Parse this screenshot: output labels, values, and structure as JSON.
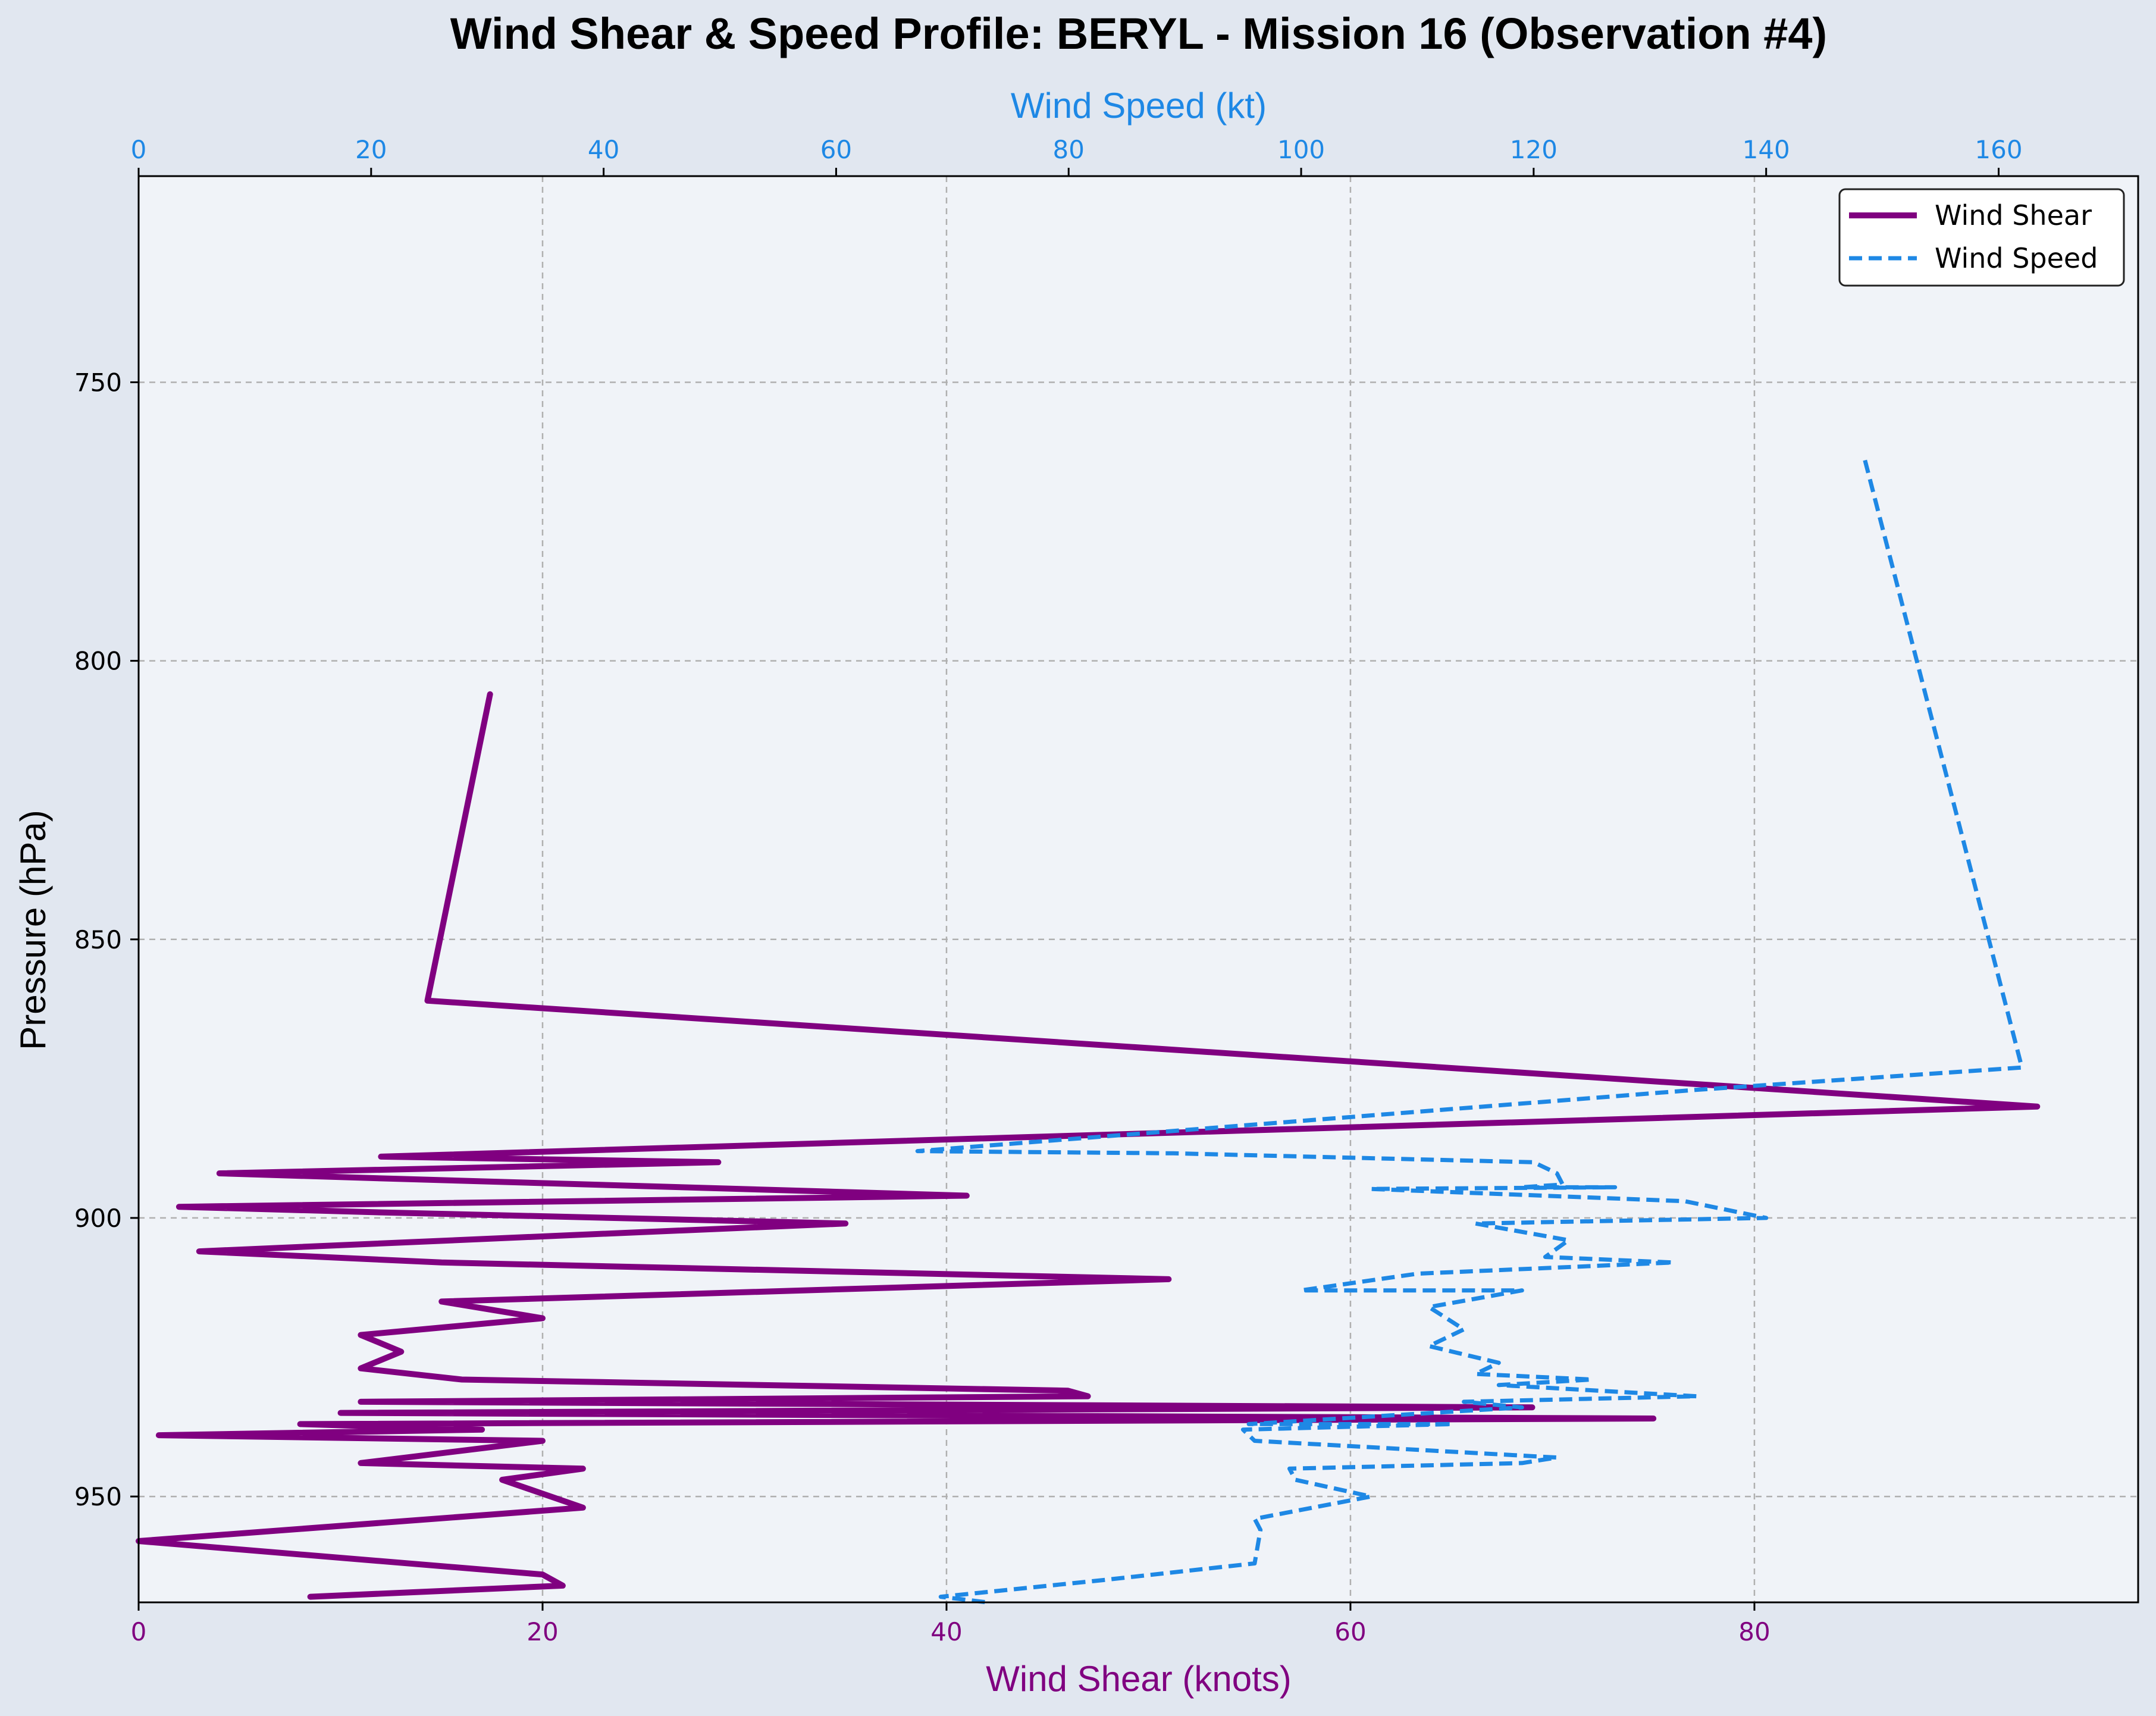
{
  "chart_data": {
    "type": "line",
    "title": "Wind Shear & Speed Profile: BERYL - Mission 16 (Observation #4)",
    "xlabel_bottom": "Wind Shear (knots)",
    "xlabel_top": "Wind Speed (kt)",
    "ylabel": "Pressure (hPa)",
    "x_bottom_lim": [
      0,
      99
    ],
    "x_top_lim": [
      0,
      172
    ],
    "y_lim": [
      713,
      969
    ],
    "y_inverted": true,
    "x_bottom_ticks": [
      "0",
      "20",
      "40",
      "60",
      "80"
    ],
    "x_top_ticks": [
      "0",
      "20",
      "40",
      "60",
      "80",
      "100",
      "120",
      "140",
      "160"
    ],
    "y_ticks": [
      "750",
      "800",
      "850",
      "950"
    ],
    "y_ticks_extra": [
      "900"
    ],
    "grid": true,
    "legend_position": "top-right",
    "colors": {
      "wind_shear": "#800080",
      "wind_speed": "#1e88e5",
      "bottom_axis": "#800080",
      "top_axis": "#1e88e5",
      "plot_bg": "#f0f3f8",
      "figure_bg": "#e1e7f0"
    },
    "series": [
      {
        "name": "Wind Shear",
        "axis": "bottom",
        "style": "solid",
        "points": [
          [
            17.4,
            806
          ],
          [
            14.3,
            861
          ],
          [
            94,
            880
          ],
          [
            12,
            889
          ],
          [
            28.7,
            890
          ],
          [
            4,
            892
          ],
          [
            13,
            893
          ],
          [
            41,
            896
          ],
          [
            2,
            898
          ],
          [
            12,
            899
          ],
          [
            35,
            901
          ],
          [
            22,
            903
          ],
          [
            3,
            906
          ],
          [
            15,
            908
          ],
          [
            51,
            911
          ],
          [
            15,
            915
          ],
          [
            20,
            918
          ],
          [
            11,
            921
          ],
          [
            13,
            924
          ],
          [
            11,
            927
          ],
          [
            16,
            929
          ],
          [
            46,
            931
          ],
          [
            47,
            932
          ],
          [
            11,
            933
          ],
          [
            69,
            934
          ],
          [
            10,
            935
          ],
          [
            75,
            936
          ],
          [
            8,
            937
          ],
          [
            17,
            938
          ],
          [
            1,
            939
          ],
          [
            20,
            940
          ],
          [
            11,
            944
          ],
          [
            22,
            945
          ],
          [
            18,
            947
          ],
          [
            22,
            952
          ],
          [
            0,
            958
          ],
          [
            20,
            964
          ],
          [
            21,
            966
          ],
          [
            8.5,
            968
          ]
        ]
      },
      {
        "name": "Wind Speed",
        "axis": "top",
        "style": "dashed",
        "points": [
          [
            148.5,
            764
          ],
          [
            162,
            873
          ],
          [
            134,
            877
          ],
          [
            67,
            888
          ],
          [
            89,
            888.4
          ],
          [
            120,
            890
          ],
          [
            122,
            892
          ],
          [
            122.5,
            894
          ],
          [
            119,
            894.5
          ],
          [
            127,
            894.5
          ],
          [
            106,
            894.8
          ],
          [
            133,
            897
          ],
          [
            140,
            900
          ],
          [
            115,
            901
          ],
          [
            123,
            904
          ],
          [
            121,
            907
          ],
          [
            132,
            908
          ],
          [
            110,
            910
          ],
          [
            100,
            913
          ],
          [
            119,
            913
          ],
          [
            111,
            916
          ],
          [
            114,
            920
          ],
          [
            111,
            923
          ],
          [
            117,
            926
          ],
          [
            115,
            928
          ],
          [
            125,
            929
          ],
          [
            117,
            930
          ],
          [
            134,
            932
          ],
          [
            114,
            933
          ],
          [
            119,
            934
          ],
          [
            95.5,
            937
          ],
          [
            113,
            937
          ],
          [
            95,
            938
          ],
          [
            96,
            940
          ],
          [
            122,
            943
          ],
          [
            119,
            944
          ],
          [
            99,
            945
          ],
          [
            99.5,
            947
          ],
          [
            106,
            950
          ],
          [
            96,
            954
          ],
          [
            96.5,
            956
          ],
          [
            96,
            962
          ],
          [
            83,
            965
          ],
          [
            69,
            968
          ],
          [
            73,
            969
          ]
        ]
      }
    ]
  }
}
